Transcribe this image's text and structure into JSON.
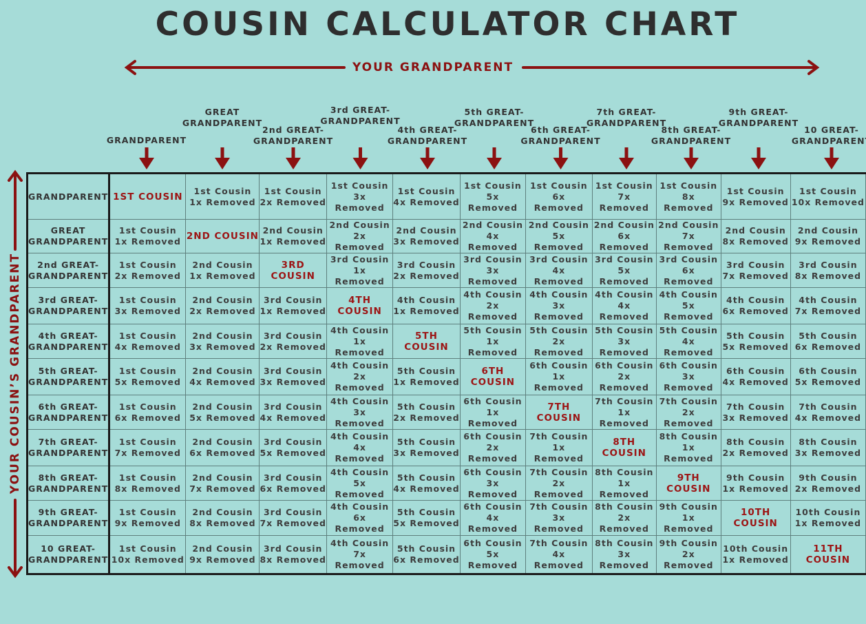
{
  "title": "COUSIN CALCULATOR CHART",
  "top_label": "YOUR GRANDPARENT",
  "side_label": "YOUR COUSIN’S GRANDPARENT",
  "colors": {
    "background": "#a6dcd8",
    "accent": "#8b1111",
    "text": "#333333",
    "highlight": "#9c1414"
  },
  "column_headers": [
    "GRANDPARENT",
    "GREAT\nGRANDPARENT",
    "2nd GREAT-\nGRANDPARENT",
    "3rd GREAT-\nGRANDPARENT",
    "4th GREAT-\nGRANDPARENT",
    "5th GREAT-\nGRANDPARENT",
    "6th GREAT-\nGRANDPARENT",
    "7th GREAT-\nGRANDPARENT",
    "8th GREAT-\nGRANDPARENT",
    "9th GREAT-\nGRANDPARENT",
    "10 GREAT-\nGRANDPARENT"
  ],
  "row_headers": [
    "GRANDPARENT",
    "GREAT\nGRANDPARENT",
    "2nd GREAT-\nGRANDPARENT",
    "3rd GREAT-\nGRANDPARENT",
    "4th GREAT-\nGRANDPARENT",
    "5th GREAT-\nGRANDPARENT",
    "6th GREAT-\nGRANDPARENT",
    "7th GREAT-\nGRANDPARENT",
    "8th GREAT-\nGRANDPARENT",
    "9th GREAT-\nGRANDPARENT",
    "10 GREAT-\nGRANDPARENT"
  ],
  "rows": [
    [
      "1ST COUSIN",
      "1st Cousin\n1x Removed",
      "1st Cousin\n2x Removed",
      "1st Cousin\n3x Removed",
      "1st Cousin\n4x Removed",
      "1st Cousin\n5x Removed",
      "1st Cousin\n6x Removed",
      "1st Cousin\n7x Removed",
      "1st Cousin\n8x Removed",
      "1st Cousin\n9x Removed",
      "1st Cousin\n10x Removed"
    ],
    [
      "1st Cousin\n1x Removed",
      "2ND COUSIN",
      "2nd Cousin\n1x Removed",
      "2nd Cousin\n2x Removed",
      "2nd Cousin\n3x Removed",
      "2nd Cousin\n4x Removed",
      "2nd Cousin\n5x Removed",
      "2nd Cousin\n6x Removed",
      "2nd Cousin\n7x Removed",
      "2nd Cousin\n8x Removed",
      "2nd Cousin\n9x Removed"
    ],
    [
      "1st Cousin\n2x Removed",
      "2nd Cousin\n1x Removed",
      "3RD COUSIN",
      "3rd Cousin\n1x Removed",
      "3rd Cousin\n2x Removed",
      "3rd Cousin\n3x Removed",
      "3rd Cousin\n4x Removed",
      "3rd Cousin\n5x Removed",
      "3rd Cousin\n6x Removed",
      "3rd Cousin\n7x Removed",
      "3rd Cousin\n8x Removed"
    ],
    [
      "1st Cousin\n3x Removed",
      "2nd Cousin\n2x Removed",
      "3rd Cousin\n1x Removed",
      "4TH COUSIN",
      "4th Cousin\n1x Removed",
      "4th Cousin\n2x Removed",
      "4th Cousin\n3x Removed",
      "4th Cousin\n4x Removed",
      "4th Cousin\n5x Removed",
      "4th Cousin\n6x Removed",
      "4th Cousin\n7x Removed"
    ],
    [
      "1st Cousin\n4x Removed",
      "2nd Cousin\n3x Removed",
      "3rd Cousin\n2x Removed",
      "4th Cousin\n1x Removed",
      "5TH COUSIN",
      "5th Cousin\n1x Removed",
      "5th Cousin\n2x Removed",
      "5th Cousin\n3x Removed",
      "5th Cousin\n4x Removed",
      "5th Cousin\n5x Removed",
      "5th Cousin\n6x Removed"
    ],
    [
      "1st Cousin\n5x Removed",
      "2nd Cousin\n4x Removed",
      "3rd Cousin\n3x Removed",
      "4th Cousin\n2x Removed",
      "5th Cousin\n1x Removed",
      "6TH COUSIN",
      "6th Cousin\n1x Removed",
      "6th Cousin\n2x Removed",
      "6th Cousin\n3x Removed",
      "6th Cousin\n4x Removed",
      "6th Cousin\n5x Removed"
    ],
    [
      "1st Cousin\n6x Removed",
      "2nd Cousin\n5x Removed",
      "3rd Cousin\n4x Removed",
      "4th Cousin\n3x Removed",
      "5th Cousin\n2x Removed",
      "6th Cousin\n1x Removed",
      "7TH COUSIN",
      "7th Cousin\n1x Removed",
      "7th Cousin\n2x Removed",
      "7th Cousin\n3x Removed",
      "7th Cousin\n4x Removed"
    ],
    [
      "1st Cousin\n7x Removed",
      "2nd Cousin\n6x Removed",
      "3rd Cousin\n5x Removed",
      "4th Cousin\n4x Removed",
      "5th Cousin\n3x Removed",
      "6th Cousin\n2x Removed",
      "7th Cousin\n1x Removed",
      "8TH COUSIN",
      "8th Cousin\n1x Removed",
      "8th Cousin\n2x Removed",
      "8th Cousin\n3x Removed"
    ],
    [
      "1st Cousin\n8x Removed",
      "2nd Cousin\n7x Removed",
      "3rd Cousin\n6x Removed",
      "4th Cousin\n5x Removed",
      "5th Cousin\n4x Removed",
      "6th Cousin\n3x Removed",
      "7th Cousin\n2x Removed",
      "8th Cousin\n1x Removed",
      "9TH COUSIN",
      "9th Cousin\n1x Removed",
      "9th Cousin\n2x Removed"
    ],
    [
      "1st Cousin\n9x Removed",
      "2nd Cousin\n8x Removed",
      "3rd Cousin\n7x Removed",
      "4th Cousin\n6x Removed",
      "5th Cousin\n5x Removed",
      "6th Cousin\n4x Removed",
      "7th Cousin\n3x Removed",
      "8th Cousin\n2x Removed",
      "9th Cousin\n1x Removed",
      "10TH COUSIN",
      "10th Cousin\n1x Removed"
    ],
    [
      "1st Cousin\n10x Removed",
      "2nd Cousin\n9x Removed",
      "3rd Cousin\n8x Removed",
      "4th Cousin\n7x Removed",
      "5th Cousin\n6x Removed",
      "6th Cousin\n5x Removed",
      "7th Cousin\n4x Removed",
      "8th Cousin\n3x Removed",
      "9th Cousin\n2x Removed",
      "10th Cousin\n1x Removed",
      "11TH COUSIN"
    ]
  ]
}
